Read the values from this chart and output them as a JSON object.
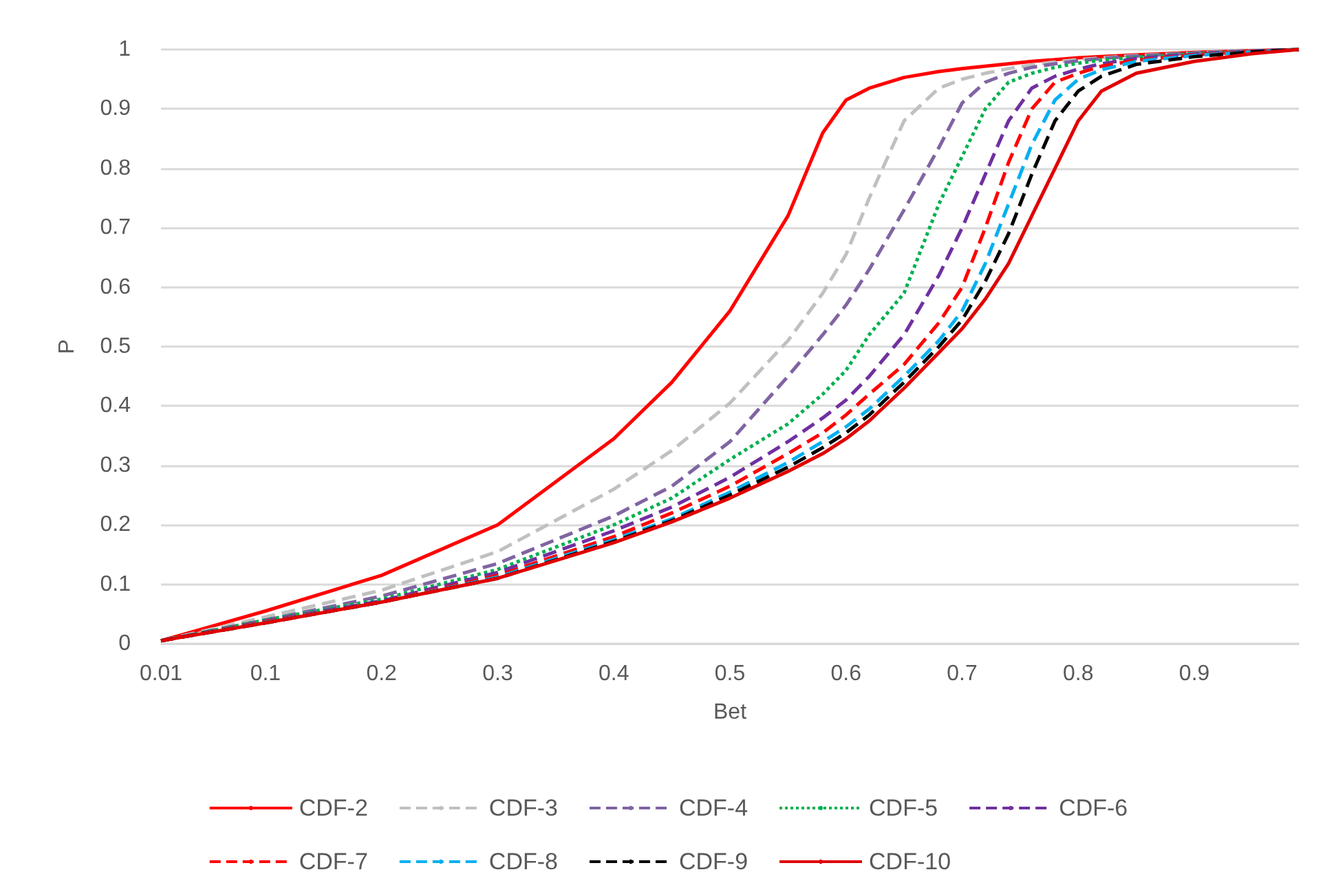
{
  "chart_data": {
    "type": "line",
    "xlabel": "Bet",
    "ylabel": "P",
    "x": [
      0.01,
      0.1,
      0.2,
      0.3,
      0.4,
      0.45,
      0.5,
      0.55,
      0.58,
      0.6,
      0.62,
      0.65,
      0.68,
      0.7,
      0.72,
      0.74,
      0.76,
      0.78,
      0.8,
      0.82,
      0.85,
      0.9,
      0.95,
      0.99
    ],
    "series": [
      {
        "name": "CDF-2",
        "color": "#ff0000",
        "line_style": "solid",
        "values": [
          0.005,
          0.055,
          0.115,
          0.2,
          0.345,
          0.44,
          0.56,
          0.72,
          0.86,
          0.915,
          0.935,
          0.953,
          0.963,
          0.968,
          0.972,
          0.976,
          0.98,
          0.983,
          0.986,
          0.988,
          0.991,
          0.995,
          0.998,
          1
        ]
      },
      {
        "name": "CDF-3",
        "color": "#c0c0c0",
        "line_style": "dashed",
        "values": [
          0.005,
          0.045,
          0.09,
          0.155,
          0.26,
          0.325,
          0.405,
          0.51,
          0.59,
          0.655,
          0.75,
          0.88,
          0.935,
          0.95,
          0.96,
          0.968,
          0.974,
          0.979,
          0.983,
          0.986,
          0.99,
          0.994,
          0.998,
          1
        ]
      },
      {
        "name": "CDF-4",
        "color": "#8064a2",
        "line_style": "dashed",
        "values": [
          0.005,
          0.04,
          0.08,
          0.135,
          0.215,
          0.265,
          0.34,
          0.45,
          0.52,
          0.57,
          0.63,
          0.73,
          0.835,
          0.91,
          0.945,
          0.96,
          0.97,
          0.976,
          0.981,
          0.985,
          0.989,
          0.994,
          0.998,
          1
        ]
      },
      {
        "name": "CDF-5",
        "color": "#00b050",
        "line_style": "dotted",
        "values": [
          0.005,
          0.04,
          0.075,
          0.125,
          0.2,
          0.245,
          0.31,
          0.37,
          0.42,
          0.46,
          0.52,
          0.59,
          0.74,
          0.82,
          0.9,
          0.945,
          0.96,
          0.97,
          0.977,
          0.982,
          0.987,
          0.993,
          0.997,
          1
        ]
      },
      {
        "name": "CDF-6",
        "color": "#7030a0",
        "line_style": "dashed",
        "values": [
          0.005,
          0.038,
          0.072,
          0.12,
          0.19,
          0.23,
          0.28,
          0.34,
          0.38,
          0.41,
          0.45,
          0.52,
          0.62,
          0.7,
          0.79,
          0.88,
          0.935,
          0.955,
          0.967,
          0.976,
          0.985,
          0.992,
          0.997,
          1
        ]
      },
      {
        "name": "CDF-7",
        "color": "#ff0000",
        "line_style": "dashed",
        "values": [
          0.005,
          0.037,
          0.07,
          0.115,
          0.18,
          0.22,
          0.265,
          0.32,
          0.355,
          0.385,
          0.42,
          0.47,
          0.54,
          0.6,
          0.7,
          0.81,
          0.9,
          0.945,
          0.96,
          0.972,
          0.982,
          0.991,
          0.997,
          1
        ]
      },
      {
        "name": "CDF-8",
        "color": "#00b0f0",
        "line_style": "dashed",
        "values": [
          0.005,
          0.036,
          0.07,
          0.112,
          0.175,
          0.21,
          0.255,
          0.305,
          0.34,
          0.365,
          0.395,
          0.45,
          0.51,
          0.56,
          0.64,
          0.74,
          0.84,
          0.915,
          0.95,
          0.966,
          0.98,
          0.99,
          0.996,
          1
        ]
      },
      {
        "name": "CDF-9",
        "color": "#000000",
        "line_style": "dashed",
        "values": [
          0.005,
          0.035,
          0.07,
          0.11,
          0.172,
          0.207,
          0.25,
          0.297,
          0.33,
          0.355,
          0.385,
          0.44,
          0.5,
          0.545,
          0.61,
          0.69,
          0.79,
          0.88,
          0.93,
          0.955,
          0.975,
          0.988,
          0.996,
          1
        ]
      },
      {
        "name": "CDF-10",
        "color": "#e00000",
        "line_style": "solid",
        "values": [
          0.005,
          0.035,
          0.07,
          0.11,
          0.17,
          0.205,
          0.245,
          0.29,
          0.32,
          0.345,
          0.375,
          0.43,
          0.49,
          0.53,
          0.58,
          0.64,
          0.72,
          0.8,
          0.88,
          0.93,
          0.96,
          0.98,
          0.993,
          1
        ]
      }
    ],
    "xlim": [
      0.01,
      0.99
    ],
    "xticks": [
      0.01,
      0.1,
      0.2,
      0.3,
      0.4,
      0.5,
      0.6,
      0.7,
      0.8,
      0.9
    ],
    "ylim": [
      0,
      1
    ],
    "yticks": [
      0,
      0.1,
      0.2,
      0.3,
      0.4,
      0.5,
      0.6,
      0.7,
      0.8,
      0.9,
      1
    ],
    "grid": "y",
    "legend": "bottom"
  }
}
